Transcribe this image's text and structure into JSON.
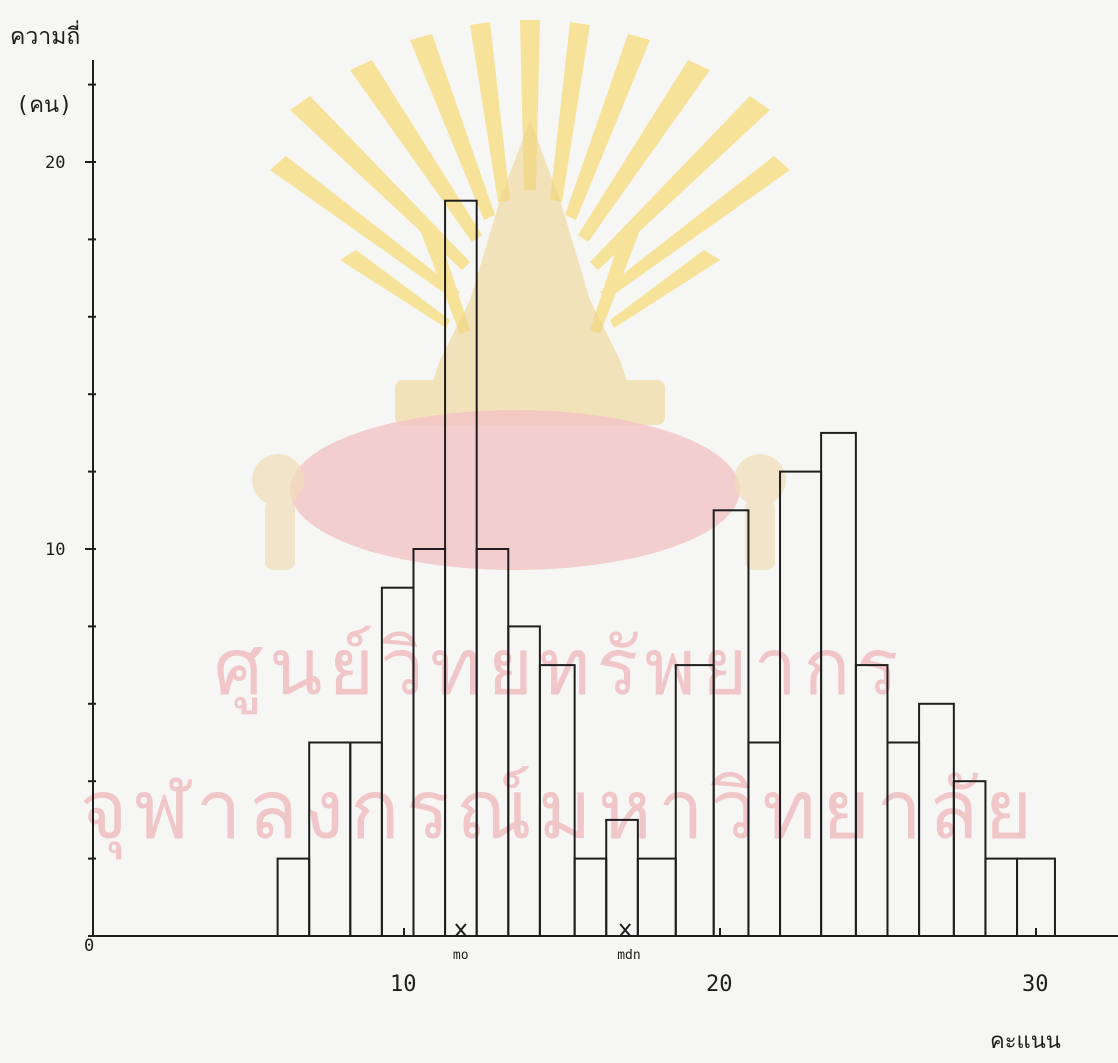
{
  "chart_data": {
    "type": "bar",
    "ylabel": "ความถี่",
    "yunit": "(คน)",
    "xlabel": "คะแนน",
    "origin_label": "0",
    "xticks": [
      10,
      20,
      30
    ],
    "yticks": [
      10,
      20
    ],
    "xlim": [
      0,
      33
    ],
    "ylim": [
      0,
      22
    ],
    "bars": [
      {
        "left": 6.0,
        "right": 7.0,
        "value": 2
      },
      {
        "left": 7.0,
        "right": 8.3,
        "value": 5
      },
      {
        "left": 8.3,
        "right": 9.3,
        "value": 5
      },
      {
        "left": 9.3,
        "right": 10.3,
        "value": 9
      },
      {
        "left": 10.3,
        "right": 11.3,
        "value": 10
      },
      {
        "left": 11.3,
        "right": 12.3,
        "value": 19
      },
      {
        "left": 12.3,
        "right": 13.3,
        "value": 10
      },
      {
        "left": 13.3,
        "right": 14.3,
        "value": 8
      },
      {
        "left": 14.3,
        "right": 15.4,
        "value": 7
      },
      {
        "left": 15.4,
        "right": 16.4,
        "value": 2
      },
      {
        "left": 16.4,
        "right": 17.4,
        "value": 3
      },
      {
        "left": 17.4,
        "right": 18.6,
        "value": 2
      },
      {
        "left": 18.6,
        "right": 19.8,
        "value": 7
      },
      {
        "left": 19.8,
        "right": 20.9,
        "value": 11
      },
      {
        "left": 20.9,
        "right": 21.9,
        "value": 5
      },
      {
        "left": 21.9,
        "right": 23.2,
        "value": 12
      },
      {
        "left": 23.2,
        "right": 24.3,
        "value": 13
      },
      {
        "left": 24.3,
        "right": 25.3,
        "value": 7
      },
      {
        "left": 25.3,
        "right": 26.3,
        "value": 5
      },
      {
        "left": 26.3,
        "right": 27.4,
        "value": 6
      },
      {
        "left": 27.4,
        "right": 28.4,
        "value": 4
      },
      {
        "left": 28.4,
        "right": 29.4,
        "value": 2
      },
      {
        "left": 29.4,
        "right": 30.6,
        "value": 2
      }
    ],
    "annotations": [
      {
        "label": "mo",
        "x": 11.8
      },
      {
        "label": "mdn",
        "x": 17.0
      }
    ]
  },
  "watermark": {
    "line1": "ศูนย์วิทยทรัพยากร",
    "line2": "จุฬาลงกรณ์มหาวิทยาลัย",
    "color": "#f0c6c8"
  }
}
